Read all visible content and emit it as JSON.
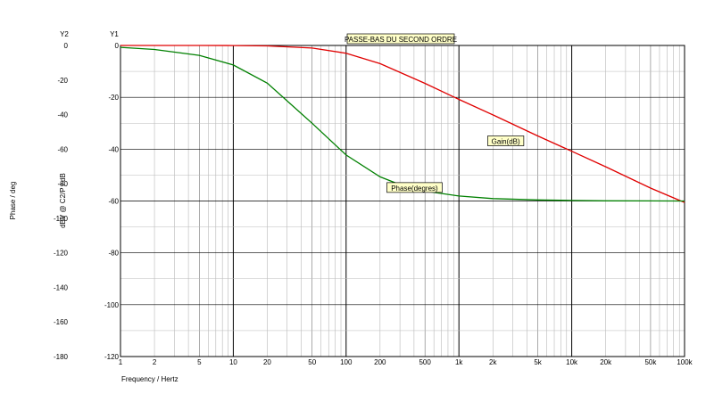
{
  "chart_data": {
    "type": "line",
    "title": "PASSE-BAS DU SECOND ORDRE",
    "xlabel": "Frequency / Hertz",
    "x_scale": "log",
    "xlim": [
      1,
      100000
    ],
    "x_ticks": [
      {
        "value": 1,
        "label": "1"
      },
      {
        "value": 2,
        "label": "2"
      },
      {
        "value": 5,
        "label": "5"
      },
      {
        "value": 10,
        "label": "10"
      },
      {
        "value": 20,
        "label": "20"
      },
      {
        "value": 50,
        "label": "50"
      },
      {
        "value": 100,
        "label": "100"
      },
      {
        "value": 200,
        "label": "200"
      },
      {
        "value": 500,
        "label": "500"
      },
      {
        "value": 1000,
        "label": "1k"
      },
      {
        "value": 2000,
        "label": "2k"
      },
      {
        "value": 5000,
        "label": "5k"
      },
      {
        "value": 10000,
        "label": "10k"
      },
      {
        "value": 20000,
        "label": "20k"
      },
      {
        "value": 50000,
        "label": "50k"
      },
      {
        "value": 100000,
        "label": "100k"
      }
    ],
    "y1_axis": {
      "name": "Y1",
      "label": "dBV @ C2/P / dB",
      "ylim": [
        -120,
        0
      ],
      "ticks": [
        0,
        -20,
        -40,
        -60,
        -80,
        -100,
        -120
      ]
    },
    "y2_axis": {
      "name": "Y2",
      "label": "Phase / deg",
      "ylim": [
        -180,
        0
      ],
      "ticks": [
        0,
        -20,
        -40,
        -60,
        -80,
        -100,
        -120,
        -140,
        -160,
        -180
      ]
    },
    "grid": true,
    "series": [
      {
        "name": "Gain(dB)",
        "axis": "y1",
        "color": "#e00000",
        "label_at": [
          1800,
          -38
        ],
        "x": [
          1,
          2,
          5,
          10,
          20,
          50,
          100,
          200,
          500,
          1000,
          2000,
          5000,
          10000,
          20000,
          50000,
          100000
        ],
        "y": [
          0,
          0,
          0,
          -0.04,
          -0.17,
          -1.0,
          -3.0,
          -7.0,
          -14.6,
          -20.8,
          -26.8,
          -34.9,
          -40.8,
          -46.8,
          -55.0,
          -60.6
        ]
      },
      {
        "name": "Phase(degres)",
        "axis": "y2",
        "color": "#008000",
        "label_at": [
          230,
          -84
        ],
        "x": [
          1,
          2,
          5,
          10,
          20,
          50,
          100,
          200,
          300,
          500,
          1000,
          2000,
          5000,
          10000,
          20000,
          50000,
          100000
        ],
        "y": [
          -1.1,
          -2.3,
          -5.7,
          -11.3,
          -21.8,
          -45,
          -63.4,
          -76.0,
          -80.5,
          -84.3,
          -87.1,
          -88.6,
          -89.4,
          -89.7,
          -89.9,
          -89.95,
          -90
        ]
      }
    ]
  }
}
